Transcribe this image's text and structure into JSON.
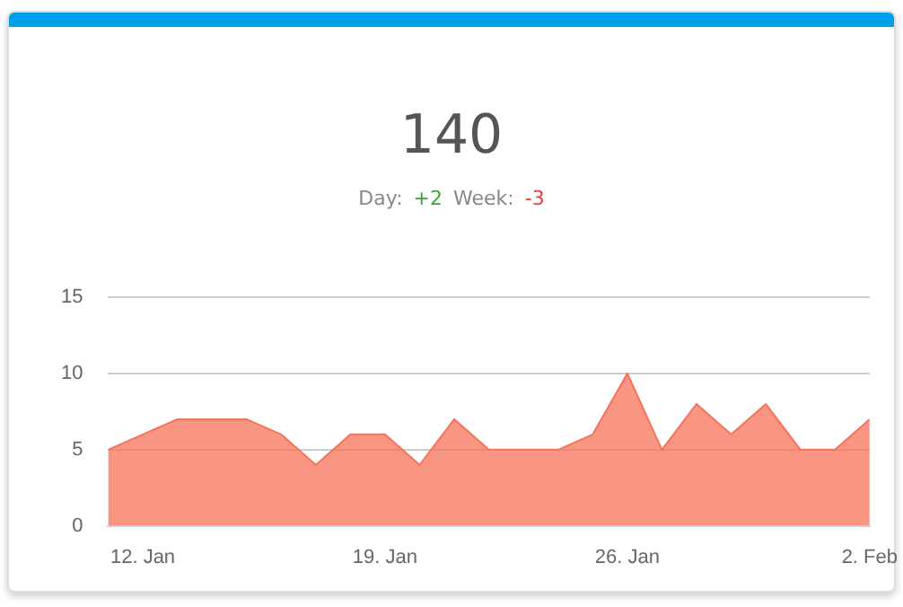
{
  "chart_data": {
    "type": "area",
    "title": "140",
    "subtitle": "Day: +2 Week: -3",
    "x": [
      "--01-11",
      "--01-12",
      "--01-13",
      "--01-14",
      "--01-15",
      "--01-16",
      "--01-17",
      "--01-18",
      "--01-19",
      "--01-20",
      "--01-21",
      "--01-22",
      "--01-23",
      "--01-24",
      "--01-25",
      "--01-26",
      "--01-27",
      "--01-28",
      "--01-29",
      "--01-30",
      "--01-31",
      "--02-01",
      "--02-02"
    ],
    "series": [
      {
        "color": "#f7725a",
        "values": [
          5,
          6,
          7,
          7,
          7,
          6,
          4,
          6,
          6,
          4,
          7,
          5,
          5,
          5,
          6,
          10,
          5,
          8,
          6,
          8,
          5,
          5,
          7
        ]
      }
    ],
    "xlim": [
      "--01-11",
      "--02-02"
    ],
    "xticks": [
      {
        "value": "--01-12",
        "label": "12. Jan"
      },
      {
        "value": "--01-19",
        "label": "19. Jan"
      },
      {
        "value": "--01-26",
        "label": "26. Jan"
      },
      {
        "value": "--02-02",
        "label": "2. Feb"
      }
    ],
    "ylim": [
      0,
      15
    ],
    "yticks": [
      0,
      5,
      10,
      15
    ],
    "grid": "y",
    "legend": false,
    "marker": "none"
  }
}
